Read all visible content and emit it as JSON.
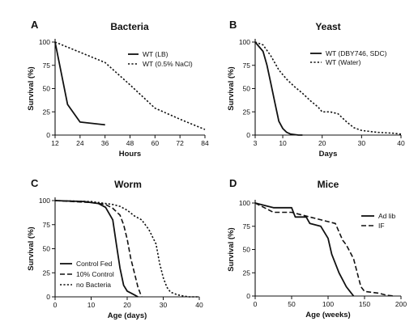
{
  "chart_data": [
    {
      "letter": "A",
      "title": "Bacteria",
      "type": "line",
      "xlabel": "Hours",
      "ylabel": "Survival (%)",
      "xlim": [
        12,
        84
      ],
      "ylim": [
        0,
        100
      ],
      "xticks": [
        12,
        24,
        36,
        48,
        60,
        72,
        84
      ],
      "yticks": [
        0,
        25,
        50,
        75,
        100
      ],
      "legend_position": "top-right",
      "series": [
        {
          "name": "WT (LB)",
          "style": "solid",
          "x": [
            12,
            18,
            24,
            36
          ],
          "y": [
            100,
            33,
            14,
            11
          ]
        },
        {
          "name": "WT (0.5% NaCl)",
          "style": "dotted",
          "x": [
            12,
            24,
            36,
            48,
            60,
            72,
            84
          ],
          "y": [
            100,
            89,
            78,
            54,
            29,
            17,
            6
          ]
        }
      ]
    },
    {
      "letter": "B",
      "title": "Yeast",
      "type": "line",
      "xlabel": "Days",
      "ylabel": "Survival (%)",
      "xlim": [
        3,
        40
      ],
      "ylim": [
        0,
        100
      ],
      "xticks": [
        3,
        10,
        20,
        30,
        40
      ],
      "yticks": [
        0,
        25,
        50,
        75,
        100
      ],
      "legend_position": "top-right",
      "series": [
        {
          "name": "WT (DBY746, SDC)",
          "style": "solid",
          "x": [
            3,
            5,
            6,
            7,
            8,
            9,
            10,
            11,
            12,
            13,
            14,
            15
          ],
          "y": [
            100,
            90,
            75,
            55,
            35,
            15,
            7,
            3,
            1,
            0.5,
            0,
            0
          ]
        },
        {
          "name": "WT (Water)",
          "style": "dotted",
          "x": [
            3,
            5,
            7,
            9,
            11,
            13,
            15,
            17,
            19,
            20,
            22,
            24,
            26,
            28,
            30,
            34,
            38,
            40
          ],
          "y": [
            100,
            97,
            85,
            70,
            60,
            52,
            45,
            37,
            30,
            25,
            25,
            23,
            15,
            8,
            5,
            3,
            2,
            1
          ]
        }
      ]
    },
    {
      "letter": "C",
      "title": "Worm",
      "type": "line",
      "xlabel": "Age (days)",
      "ylabel": "Survival (%)",
      "xlim": [
        0,
        40
      ],
      "ylim": [
        0,
        100
      ],
      "xticks": [
        0,
        10,
        20,
        30,
        40
      ],
      "yticks": [
        0,
        25,
        50,
        75,
        100
      ],
      "legend_position": "bottom-left",
      "series": [
        {
          "name": "Control Fed",
          "style": "solid",
          "x": [
            0,
            8,
            12,
            14,
            16,
            17,
            18,
            19,
            20,
            21,
            22,
            23
          ],
          "y": [
            100,
            99,
            97,
            93,
            80,
            55,
            30,
            12,
            6,
            4,
            2,
            0
          ]
        },
        {
          "name": "10% Control",
          "style": "dashed",
          "x": [
            0,
            10,
            14,
            16,
            18,
            19,
            20,
            21,
            22,
            23,
            24
          ],
          "y": [
            100,
            98,
            96,
            92,
            85,
            75,
            60,
            40,
            25,
            10,
            0
          ]
        },
        {
          "name": "no Bacteria",
          "style": "dotted",
          "x": [
            0,
            10,
            14,
            16,
            18,
            20,
            22,
            24,
            26,
            28,
            29,
            30,
            31,
            32,
            34,
            37,
            40
          ],
          "y": [
            100,
            99,
            97,
            96,
            94,
            90,
            84,
            80,
            70,
            55,
            35,
            20,
            10,
            5,
            2,
            0,
            0
          ]
        }
      ]
    },
    {
      "letter": "D",
      "title": "Mice",
      "type": "line",
      "xlabel": "Age (weeks)",
      "ylabel": "Survival (%)",
      "xlim": [
        0,
        200
      ],
      "ylim": [
        0,
        100
      ],
      "xticks": [
        0,
        50,
        100,
        150,
        200
      ],
      "yticks": [
        0,
        25,
        50,
        75,
        100
      ],
      "legend_position": "top-right",
      "series": [
        {
          "name": "Ad lib",
          "style": "solid",
          "x": [
            0,
            25,
            50,
            55,
            70,
            75,
            90,
            100,
            105,
            110,
            115,
            125,
            130,
            135
          ],
          "y": [
            100,
            95,
            95,
            85,
            85,
            78,
            75,
            62,
            45,
            35,
            25,
            10,
            5,
            0
          ]
        },
        {
          "name": "IF",
          "style": "dashed",
          "x": [
            0,
            25,
            50,
            75,
            100,
            110,
            120,
            125,
            135,
            140,
            145,
            150,
            160,
            170,
            180,
            190
          ],
          "y": [
            100,
            90,
            90,
            85,
            80,
            78,
            60,
            55,
            40,
            25,
            10,
            5,
            4,
            3,
            1,
            0
          ]
        }
      ]
    }
  ]
}
